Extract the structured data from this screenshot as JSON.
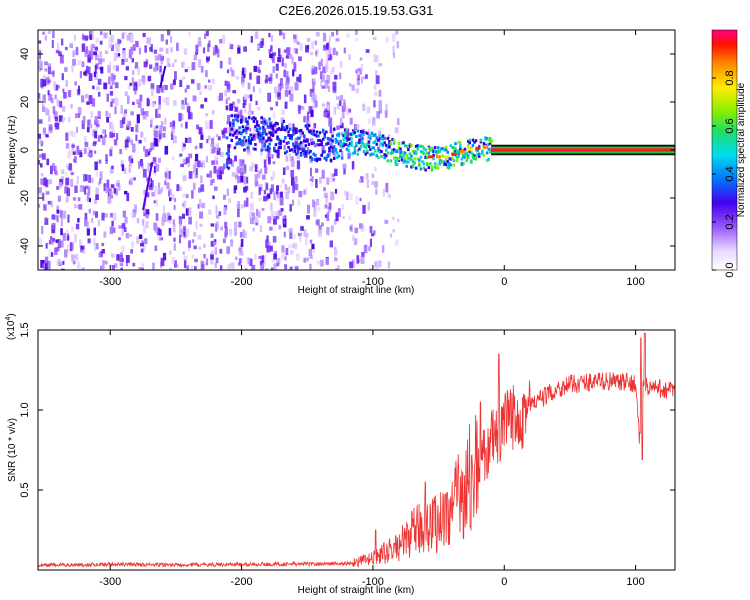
{
  "title": "C2E6.2026.015.19.53.G31",
  "chart_data": [
    {
      "type": "heatmap",
      "name": "spectrogram",
      "xlabel": "Height of straight line (km)",
      "ylabel": "Frequency (Hz)",
      "xlim": [
        -355,
        130
      ],
      "ylim": [
        -50,
        50
      ],
      "xticks": [
        -300,
        -200,
        -100,
        0,
        100
      ],
      "yticks": [
        -40,
        -20,
        0,
        20,
        40
      ],
      "colorbar": {
        "label": "Normalized spectral amplitude",
        "range": [
          0,
          1
        ],
        "ticks": [
          0.0,
          0.2,
          0.4,
          0.6,
          0.8
        ]
      },
      "features": [
        {
          "description": "broadband noise",
          "x_range": [
            -355,
            -110
          ],
          "y_range": [
            -50,
            50
          ]
        },
        {
          "description": "signal track",
          "points": [
            [
              -210,
              8
            ],
            [
              -180,
              7
            ],
            [
              -160,
              6
            ],
            [
              -140,
              2
            ],
            [
              -120,
              4
            ],
            [
              -100,
              3
            ],
            [
              -80,
              -1
            ],
            [
              -60,
              -3
            ],
            [
              -45,
              -3
            ],
            [
              -30,
              0
            ],
            [
              -15,
              1
            ],
            [
              0,
              0
            ],
            [
              50,
              0
            ],
            [
              100,
              0
            ],
            [
              130,
              0
            ]
          ]
        }
      ]
    },
    {
      "type": "line",
      "name": "snr",
      "xlabel": "Height of straight line (km)",
      "ylabel": "SNR (10 * v/v)",
      "y_multiplier": "(x10^4)",
      "y_multiplier_base": "(x10",
      "y_multiplier_exp": "4",
      "y_multiplier_close": ")",
      "xlim": [
        -355,
        130
      ],
      "ylim": [
        0,
        15000
      ],
      "xticks": [
        -300,
        -200,
        -100,
        0,
        100
      ],
      "yticks": [
        5000,
        10000,
        15000
      ],
      "ytick_labels": [
        "0.5",
        "1.0",
        "1.5"
      ],
      "color": "#ee3333",
      "series": [
        {
          "name": "SNR",
          "x": [
            -355,
            -300,
            -250,
            -200,
            -150,
            -120,
            -100,
            -90,
            -80,
            -70,
            -60,
            -50,
            -40,
            -30,
            -20,
            -10,
            0,
            10,
            20,
            30,
            40,
            50,
            60,
            70,
            80,
            90,
            100,
            103,
            106,
            110,
            120,
            130
          ],
          "y": [
            300,
            350,
            320,
            350,
            380,
            400,
            700,
            1100,
            1500,
            2300,
            2800,
            3000,
            3800,
            5200,
            6400,
            8000,
            8900,
            9800,
            10300,
            10800,
            11300,
            11600,
            11700,
            11800,
            11800,
            11700,
            11700,
            8000,
            11600,
            11400,
            11300,
            11200
          ]
        }
      ],
      "spikes": [
        {
          "x": -98,
          "y": 2500
        },
        {
          "x": -60,
          "y": 5500
        },
        {
          "x": -45,
          "y": 4700
        },
        {
          "x": -18,
          "y": 10500
        },
        {
          "x": -4,
          "y": 13500
        },
        {
          "x": 104,
          "y": 14500
        },
        {
          "x": 107,
          "y": 14800
        },
        {
          "x": 105,
          "y": 6900
        }
      ]
    }
  ]
}
